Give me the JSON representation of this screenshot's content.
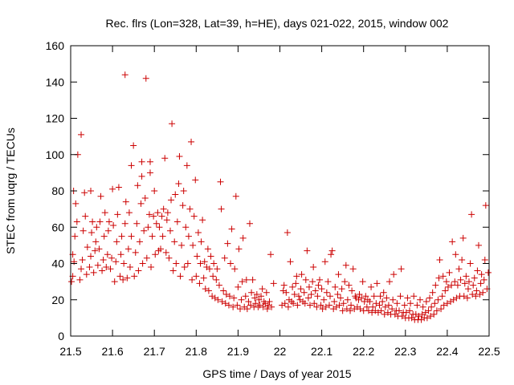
{
  "chart_data": {
    "type": "scatter",
    "title": "Rec. flrs (Lon=328, Lat=39, h=HE), days 021-022, 2015, window 002",
    "xlabel": "GPS time / Days of year 2015",
    "ylabel": "STEC from uqrg / TECUs",
    "xlim": [
      21.5,
      22.5
    ],
    "ylim": [
      0,
      160
    ],
    "xticks": [
      "21.5",
      "21.6",
      "21.7",
      "21.8",
      "21.9",
      "22",
      "22.1",
      "22.2",
      "22.3",
      "22.4",
      "22.5"
    ],
    "yticks": [
      "0",
      "20",
      "40",
      "60",
      "80",
      "100",
      "120",
      "140",
      "160"
    ],
    "grid": false,
    "legend": "none",
    "marker": "plus",
    "color": "#cc0000",
    "points": [
      [
        21.502,
        30
      ],
      [
        21.505,
        33
      ],
      [
        21.508,
        41
      ],
      [
        21.505,
        45
      ],
      [
        21.51,
        55
      ],
      [
        21.515,
        63
      ],
      [
        21.512,
        73
      ],
      [
        21.507,
        80
      ],
      [
        21.517,
        100
      ],
      [
        21.522,
        31
      ],
      [
        21.525,
        37
      ],
      [
        21.528,
        42
      ],
      [
        21.53,
        58
      ],
      [
        21.535,
        66
      ],
      [
        21.533,
        79
      ],
      [
        21.525,
        111
      ],
      [
        21.538,
        34
      ],
      [
        21.54,
        49
      ],
      [
        21.545,
        38
      ],
      [
        21.548,
        44
      ],
      [
        21.55,
        57
      ],
      [
        21.552,
        63
      ],
      [
        21.548,
        80
      ],
      [
        21.555,
        35
      ],
      [
        21.558,
        47
      ],
      [
        21.56,
        52
      ],
      [
        21.562,
        60
      ],
      [
        21.565,
        39
      ],
      [
        21.568,
        48
      ],
      [
        21.57,
        63
      ],
      [
        21.572,
        77
      ],
      [
        21.575,
        36
      ],
      [
        21.578,
        42
      ],
      [
        21.58,
        55
      ],
      [
        21.582,
        68
      ],
      [
        21.585,
        38
      ],
      [
        21.588,
        45
      ],
      [
        21.59,
        58
      ],
      [
        21.592,
        63
      ],
      [
        21.595,
        37
      ],
      [
        21.598,
        43
      ],
      [
        21.6,
        81
      ],
      [
        21.602,
        61
      ],
      [
        21.605,
        30
      ],
      [
        21.608,
        41
      ],
      [
        21.61,
        52
      ],
      [
        21.612,
        67
      ],
      [
        21.615,
        82
      ],
      [
        21.618,
        33
      ],
      [
        21.62,
        45
      ],
      [
        21.622,
        55
      ],
      [
        21.625,
        31
      ],
      [
        21.627,
        40
      ],
      [
        21.63,
        62
      ],
      [
        21.632,
        74
      ],
      [
        21.63,
        144
      ],
      [
        21.635,
        32
      ],
      [
        21.638,
        48
      ],
      [
        21.64,
        68
      ],
      [
        21.642,
        38
      ],
      [
        21.645,
        55
      ],
      [
        21.645,
        94
      ],
      [
        21.65,
        105
      ],
      [
        21.652,
        33
      ],
      [
        21.655,
        46
      ],
      [
        21.658,
        62
      ],
      [
        21.66,
        83
      ],
      [
        21.662,
        36
      ],
      [
        21.665,
        52
      ],
      [
        21.668,
        73
      ],
      [
        21.67,
        88
      ],
      [
        21.67,
        96
      ],
      [
        21.672,
        40
      ],
      [
        21.675,
        58
      ],
      [
        21.678,
        76
      ],
      [
        21.68,
        142
      ],
      [
        21.682,
        43
      ],
      [
        21.685,
        60
      ],
      [
        21.688,
        67
      ],
      [
        21.69,
        90
      ],
      [
        21.69,
        96
      ],
      [
        21.692,
        38
      ],
      [
        21.695,
        55
      ],
      [
        21.698,
        66
      ],
      [
        21.7,
        80
      ],
      [
        21.702,
        45
      ],
      [
        21.705,
        62
      ],
      [
        21.708,
        68
      ],
      [
        21.71,
        47
      ],
      [
        21.712,
        60
      ],
      [
        21.715,
        48
      ],
      [
        21.718,
        66
      ],
      [
        21.72,
        55
      ],
      [
        21.722,
        70
      ],
      [
        21.725,
        98
      ],
      [
        21.728,
        46
      ],
      [
        21.73,
        64
      ],
      [
        21.732,
        68
      ],
      [
        21.735,
        43
      ],
      [
        21.738,
        58
      ],
      [
        21.74,
        75
      ],
      [
        21.742,
        117
      ],
      [
        21.745,
        36
      ],
      [
        21.748,
        52
      ],
      [
        21.75,
        78
      ],
      [
        21.752,
        40
      ],
      [
        21.755,
        63
      ],
      [
        21.758,
        84
      ],
      [
        21.76,
        99
      ],
      [
        21.762,
        33
      ],
      [
        21.765,
        50
      ],
      [
        21.768,
        72
      ],
      [
        21.77,
        80
      ],
      [
        21.772,
        38
      ],
      [
        21.775,
        60
      ],
      [
        21.778,
        94
      ],
      [
        21.78,
        40
      ],
      [
        21.782,
        55
      ],
      [
        21.785,
        70
      ],
      [
        21.788,
        107
      ],
      [
        21.79,
        31
      ],
      [
        21.792,
        50
      ],
      [
        21.795,
        66
      ],
      [
        21.798,
        86
      ],
      [
        21.8,
        33
      ],
      [
        21.802,
        44
      ],
      [
        21.805,
        57
      ],
      [
        21.808,
        29
      ],
      [
        21.81,
        40
      ],
      [
        21.812,
        52
      ],
      [
        21.815,
        64
      ],
      [
        21.818,
        32
      ],
      [
        21.82,
        41
      ],
      [
        21.822,
        26
      ],
      [
        21.825,
        38
      ],
      [
        21.828,
        48
      ],
      [
        21.83,
        25
      ],
      [
        21.832,
        37
      ],
      [
        21.835,
        44
      ],
      [
        21.838,
        22
      ],
      [
        21.84,
        33
      ],
      [
        21.842,
        40
      ],
      [
        21.845,
        21
      ],
      [
        21.848,
        31
      ],
      [
        21.85,
        37
      ],
      [
        21.852,
        20
      ],
      [
        21.855,
        28
      ],
      [
        21.858,
        85
      ],
      [
        21.86,
        70
      ],
      [
        21.862,
        19
      ],
      [
        21.865,
        25
      ],
      [
        21.868,
        43
      ],
      [
        21.87,
        18
      ],
      [
        21.872,
        23
      ],
      [
        21.875,
        51
      ],
      [
        21.878,
        17
      ],
      [
        21.88,
        22
      ],
      [
        21.882,
        40
      ],
      [
        21.885,
        59
      ],
      [
        21.888,
        16
      ],
      [
        21.89,
        21
      ],
      [
        21.892,
        37
      ],
      [
        21.895,
        77
      ],
      [
        21.898,
        17
      ],
      [
        21.9,
        27
      ],
      [
        21.902,
        48
      ],
      [
        21.905,
        15
      ],
      [
        21.908,
        20
      ],
      [
        21.91,
        30
      ],
      [
        21.912,
        54
      ],
      [
        21.915,
        16
      ],
      [
        21.918,
        22
      ],
      [
        21.92,
        31
      ],
      [
        21.922,
        15
      ],
      [
        21.925,
        19
      ],
      [
        21.928,
        62
      ],
      [
        21.93,
        17
      ],
      [
        21.932,
        24
      ],
      [
        21.935,
        31
      ],
      [
        21.938,
        16
      ],
      [
        21.94,
        21
      ],
      [
        21.942,
        18
      ],
      [
        21.945,
        23
      ],
      [
        21.948,
        16
      ],
      [
        21.95,
        20
      ],
      [
        21.952,
        17
      ],
      [
        21.955,
        22
      ],
      [
        21.958,
        26
      ],
      [
        21.96,
        16
      ],
      [
        21.962,
        19
      ],
      [
        21.965,
        18
      ],
      [
        21.968,
        24
      ],
      [
        21.97,
        15
      ],
      [
        21.972,
        17
      ],
      [
        21.975,
        19
      ],
      [
        21.978,
        45
      ],
      [
        21.98,
        16
      ],
      [
        21.985,
        29
      ],
      [
        22.005,
        17
      ],
      [
        22.008,
        25
      ],
      [
        22.01,
        28
      ],
      [
        22.012,
        18
      ],
      [
        22.015,
        24
      ],
      [
        22.018,
        57
      ],
      [
        22.02,
        16
      ],
      [
        22.022,
        20
      ],
      [
        22.025,
        41
      ],
      [
        22.028,
        19
      ],
      [
        22.03,
        27
      ],
      [
        22.032,
        18
      ],
      [
        22.035,
        23
      ],
      [
        22.038,
        29
      ],
      [
        22.04,
        33
      ],
      [
        22.042,
        17
      ],
      [
        22.045,
        22
      ],
      [
        22.048,
        20
      ],
      [
        22.05,
        26
      ],
      [
        22.052,
        34
      ],
      [
        22.055,
        19
      ],
      [
        22.058,
        24
      ],
      [
        22.06,
        18
      ],
      [
        22.062,
        31
      ],
      [
        22.065,
        47
      ],
      [
        22.068,
        21
      ],
      [
        22.07,
        27
      ],
      [
        22.072,
        17
      ],
      [
        22.075,
        23
      ],
      [
        22.078,
        30
      ],
      [
        22.08,
        38
      ],
      [
        22.082,
        18
      ],
      [
        22.085,
        25
      ],
      [
        22.088,
        16
      ],
      [
        22.09,
        22
      ],
      [
        22.092,
        28
      ],
      [
        22.095,
        31
      ],
      [
        22.098,
        17
      ],
      [
        22.1,
        26
      ],
      [
        22.102,
        15
      ],
      [
        22.105,
        20
      ],
      [
        22.108,
        41
      ],
      [
        22.11,
        16
      ],
      [
        22.112,
        24
      ],
      [
        22.115,
        30
      ],
      [
        22.118,
        17
      ],
      [
        22.12,
        22
      ],
      [
        22.122,
        45
      ],
      [
        22.125,
        47
      ],
      [
        22.128,
        15
      ],
      [
        22.13,
        19
      ],
      [
        22.132,
        27
      ],
      [
        22.135,
        16
      ],
      [
        22.138,
        23
      ],
      [
        22.14,
        34
      ],
      [
        22.142,
        17
      ],
      [
        22.145,
        21
      ],
      [
        22.148,
        26
      ],
      [
        22.15,
        14
      ],
      [
        22.152,
        18
      ],
      [
        22.155,
        30
      ],
      [
        22.158,
        39
      ],
      [
        22.16,
        15
      ],
      [
        22.162,
        20
      ],
      [
        22.165,
        28
      ],
      [
        22.168,
        14
      ],
      [
        22.17,
        17
      ],
      [
        22.172,
        25
      ],
      [
        22.175,
        37
      ],
      [
        22.178,
        15
      ],
      [
        22.18,
        22
      ],
      [
        22.182,
        21
      ],
      [
        22.185,
        16
      ],
      [
        22.188,
        20
      ],
      [
        22.19,
        23
      ],
      [
        22.192,
        15
      ],
      [
        22.195,
        21
      ],
      [
        22.198,
        30
      ],
      [
        22.2,
        14
      ],
      [
        22.202,
        19
      ],
      [
        22.205,
        22
      ],
      [
        22.208,
        16
      ],
      [
        22.21,
        20
      ],
      [
        22.212,
        14
      ],
      [
        22.215,
        19
      ],
      [
        22.218,
        27
      ],
      [
        22.22,
        13
      ],
      [
        22.222,
        16
      ],
      [
        22.225,
        22
      ],
      [
        22.228,
        14
      ],
      [
        22.23,
        18
      ],
      [
        22.232,
        29
      ],
      [
        22.235,
        13
      ],
      [
        22.238,
        17
      ],
      [
        22.24,
        22
      ],
      [
        22.242,
        14
      ],
      [
        22.245,
        19
      ],
      [
        22.248,
        24
      ],
      [
        22.25,
        12
      ],
      [
        22.252,
        16
      ],
      [
        22.255,
        21
      ],
      [
        22.258,
        13
      ],
      [
        22.26,
        17
      ],
      [
        22.262,
        30
      ],
      [
        22.265,
        12
      ],
      [
        22.268,
        15
      ],
      [
        22.27,
        20
      ],
      [
        22.272,
        34
      ],
      [
        22.275,
        12
      ],
      [
        22.278,
        14
      ],
      [
        22.28,
        18
      ],
      [
        22.282,
        11
      ],
      [
        22.285,
        14
      ],
      [
        22.288,
        22
      ],
      [
        22.29,
        37
      ],
      [
        22.292,
        11
      ],
      [
        22.295,
        13
      ],
      [
        22.298,
        17
      ],
      [
        22.3,
        10
      ],
      [
        22.302,
        13
      ],
      [
        22.305,
        21
      ],
      [
        22.308,
        10
      ],
      [
        22.31,
        14
      ],
      [
        22.312,
        18
      ],
      [
        22.315,
        10
      ],
      [
        22.318,
        12
      ],
      [
        22.32,
        22
      ],
      [
        22.322,
        9
      ],
      [
        22.325,
        12
      ],
      [
        22.328,
        17
      ],
      [
        22.33,
        9
      ],
      [
        22.332,
        11
      ],
      [
        22.335,
        20
      ],
      [
        22.338,
        9
      ],
      [
        22.34,
        12
      ],
      [
        22.342,
        16
      ],
      [
        22.345,
        10
      ],
      [
        22.348,
        13
      ],
      [
        22.35,
        19
      ],
      [
        22.352,
        10
      ],
      [
        22.355,
        14
      ],
      [
        22.358,
        21
      ],
      [
        22.36,
        11
      ],
      [
        22.362,
        16
      ],
      [
        22.365,
        24
      ],
      [
        22.368,
        12
      ],
      [
        22.37,
        18
      ],
      [
        22.372,
        28
      ],
      [
        22.375,
        14
      ],
      [
        22.378,
        20
      ],
      [
        22.38,
        32
      ],
      [
        22.382,
        42
      ],
      [
        22.385,
        15
      ],
      [
        22.388,
        22
      ],
      [
        22.39,
        33
      ],
      [
        22.392,
        17
      ],
      [
        22.395,
        25
      ],
      [
        22.398,
        30
      ],
      [
        22.4,
        18
      ],
      [
        22.402,
        27
      ],
      [
        22.405,
        35
      ],
      [
        22.408,
        19
      ],
      [
        22.41,
        28
      ],
      [
        22.412,
        52
      ],
      [
        22.415,
        20
      ],
      [
        22.418,
        30
      ],
      [
        22.42,
        45
      ],
      [
        22.422,
        21
      ],
      [
        22.425,
        28
      ],
      [
        22.428,
        37
      ],
      [
        22.43,
        22
      ],
      [
        22.432,
        31
      ],
      [
        22.435,
        42
      ],
      [
        22.438,
        54
      ],
      [
        22.44,
        22
      ],
      [
        22.442,
        29
      ],
      [
        22.445,
        33
      ],
      [
        22.448,
        21
      ],
      [
        22.45,
        26
      ],
      [
        22.452,
        30
      ],
      [
        22.455,
        40
      ],
      [
        22.458,
        67
      ],
      [
        22.46,
        23
      ],
      [
        22.462,
        28
      ],
      [
        22.465,
        32
      ],
      [
        22.468,
        22
      ],
      [
        22.47,
        25
      ],
      [
        22.472,
        36
      ],
      [
        22.475,
        50
      ],
      [
        22.478,
        23
      ],
      [
        22.48,
        29
      ],
      [
        22.482,
        34
      ],
      [
        22.485,
        24
      ],
      [
        22.488,
        31
      ],
      [
        22.49,
        42
      ],
      [
        22.492,
        72
      ],
      [
        22.495,
        26
      ],
      [
        22.498,
        35
      ]
    ]
  }
}
